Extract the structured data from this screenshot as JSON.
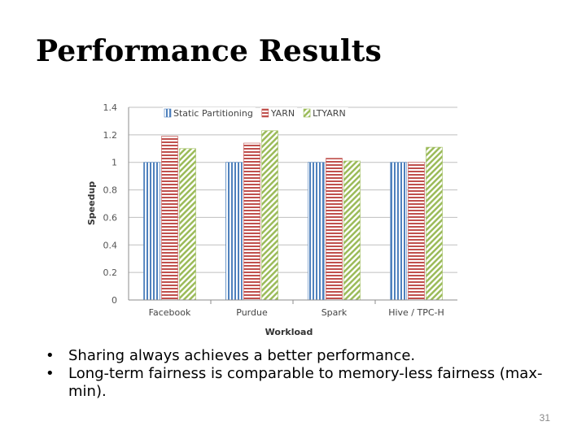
{
  "slide": {
    "title": "Performance Results",
    "bullets": [
      "Sharing always achieves a better performance.",
      "Long-term fairness is comparable to memory-less fairness (max-min)."
    ],
    "bullet_symbol": "•",
    "slide_number": "31"
  },
  "chart_data": {
    "type": "bar",
    "categories": [
      "Facebook",
      "Purdue",
      "Spark",
      "Hive / TPC-H"
    ],
    "series": [
      {
        "name": "Static Partitioning",
        "values": [
          1.0,
          1.0,
          1.0,
          1.0
        ],
        "color": "#4F81BD",
        "pattern": "vertical-stripes"
      },
      {
        "name": "YARN",
        "values": [
          1.19,
          1.14,
          1.03,
          1.0
        ],
        "color": "#C0504D",
        "pattern": "horizontal-stripes"
      },
      {
        "name": "LTYARN",
        "values": [
          1.1,
          1.23,
          1.01,
          1.11
        ],
        "color": "#9BBB59",
        "pattern": "diagonal-stripes"
      }
    ],
    "xlabel": "Workload",
    "ylabel": "Speedup",
    "ylim": [
      0,
      1.4
    ],
    "yticks": [
      "0",
      "0.2",
      "0.4",
      "0.6",
      "0.8",
      "1",
      "1.2",
      "1.4"
    ],
    "grid": true,
    "legend_position": "top"
  }
}
